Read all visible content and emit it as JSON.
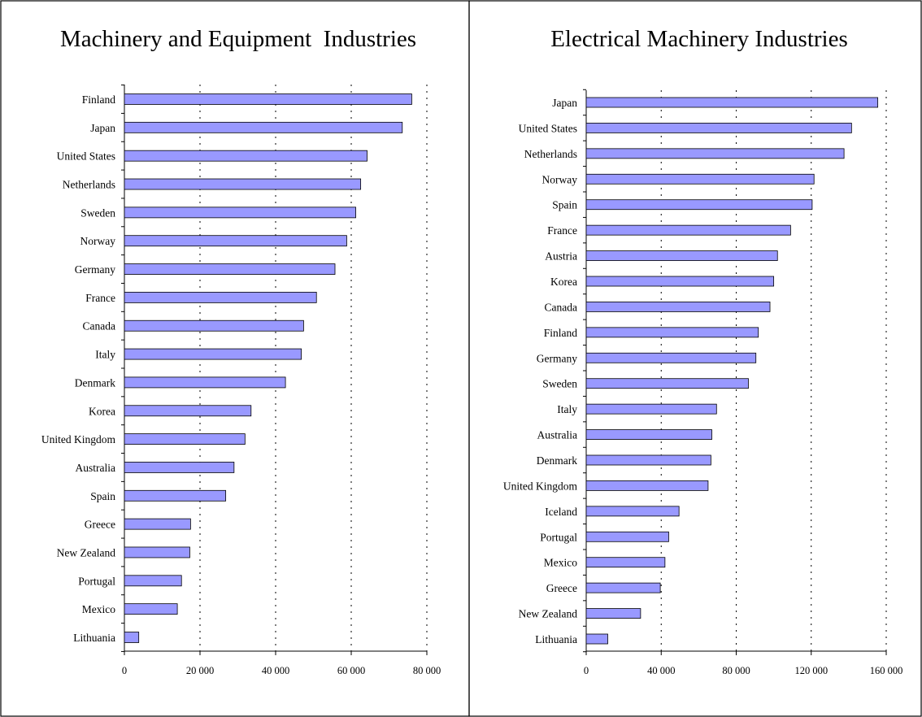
{
  "chart_data": [
    {
      "type": "bar",
      "orientation": "horizontal",
      "title": "Machinery and Equipment  Industries",
      "categories": [
        "Finland",
        "Japan",
        "United States",
        "Netherlands",
        "Sweden",
        "Norway",
        "Germany",
        "France",
        "Canada",
        "Italy",
        "Denmark",
        "Korea",
        "United Kingdom",
        "Australia",
        "Spain",
        "Greece",
        "New Zealand",
        "Portugal",
        "Mexico",
        "Lithuania"
      ],
      "values": [
        76000,
        73500,
        64200,
        62500,
        61200,
        58800,
        55700,
        50800,
        47400,
        46800,
        42600,
        33500,
        31900,
        29000,
        26800,
        17500,
        17300,
        15100,
        14000,
        3800
      ],
      "xlim": [
        0,
        80000
      ],
      "xticks": [
        0,
        20000,
        40000,
        60000,
        80000
      ],
      "xtick_labels": [
        "0",
        "20 000",
        "40 000",
        "60 000",
        "80 000"
      ],
      "xlabel": "",
      "ylabel": "",
      "grid": "vertical dashed",
      "bar_color": "#9999ff"
    },
    {
      "type": "bar",
      "orientation": "horizontal",
      "title": "Electrical Machinery Industries",
      "categories": [
        "Japan",
        "United States",
        "Netherlands",
        "Norway",
        "Spain",
        "France",
        "Austria",
        "Korea",
        "Canada",
        "Finland",
        "Germany",
        "Sweden",
        "Italy",
        "Australia",
        "Denmark",
        "United Kingdom",
        "Iceland",
        "Portugal",
        "Mexico",
        "Greece",
        "New Zealand",
        "Lithuania"
      ],
      "values": [
        155500,
        141500,
        137500,
        121500,
        120500,
        109000,
        102000,
        100000,
        98000,
        91800,
        90500,
        86500,
        69500,
        67000,
        66500,
        65000,
        49500,
        44000,
        42000,
        39500,
        29000,
        11500
      ],
      "xlim": [
        0,
        160000
      ],
      "xticks": [
        0,
        40000,
        80000,
        120000,
        160000
      ],
      "xtick_labels": [
        "0",
        "40 000",
        "80 000",
        "120 000",
        "160 000"
      ],
      "xlabel": "",
      "ylabel": "",
      "grid": "vertical dashed",
      "bar_color": "#9999ff"
    }
  ]
}
